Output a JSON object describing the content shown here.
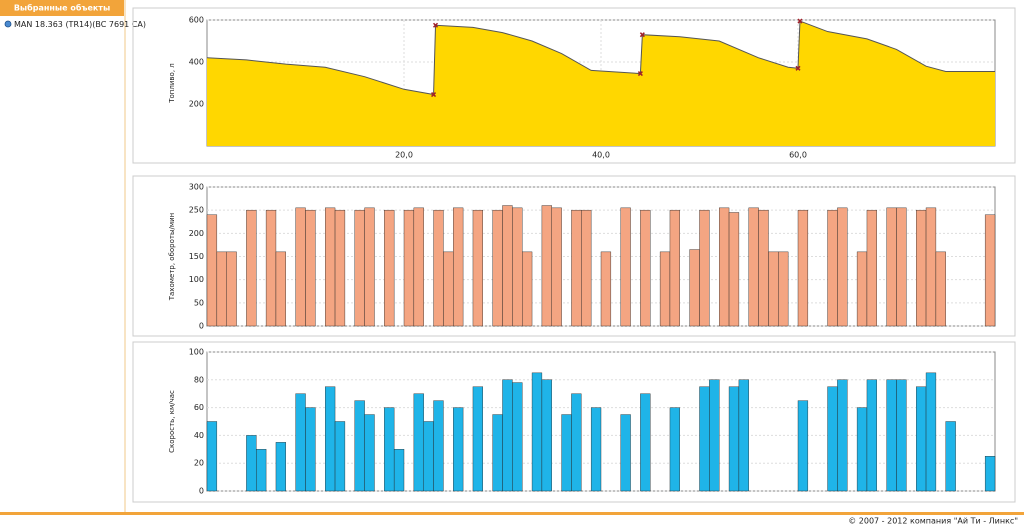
{
  "sidebar": {
    "title": "Выбранные объекты",
    "items": [
      "MAN 18.363 (TR14)(BC 7691 CA)"
    ]
  },
  "chart_data": [
    {
      "type": "area",
      "y_label": "Топливо, л",
      "color": "#ffd700",
      "line_color": "#555555",
      "x": [
        0,
        4,
        8,
        12,
        16,
        20,
        23,
        23.2,
        27,
        30,
        33,
        36,
        39,
        44,
        44.2,
        48,
        52,
        56,
        59,
        60,
        60.2,
        63,
        67,
        70,
        73,
        75,
        80
      ],
      "values": [
        420,
        410,
        390,
        375,
        330,
        270,
        245,
        575,
        565,
        540,
        500,
        440,
        360,
        345,
        530,
        520,
        500,
        420,
        375,
        370,
        595,
        545,
        510,
        460,
        380,
        355,
        355
      ],
      "markers": {
        "x": [
          23,
          23.2,
          44,
          44.2,
          60,
          60.2
        ],
        "values": [
          245,
          575,
          345,
          530,
          370,
          595
        ],
        "color": "#a0202a"
      },
      "xlim": [
        0,
        80
      ],
      "ylim": [
        0,
        600
      ],
      "xticks": [
        {
          "value": 20,
          "label": "20,0"
        },
        {
          "value": 40,
          "label": "40,0"
        },
        {
          "value": 60,
          "label": "60,0"
        }
      ],
      "yticks": [
        200,
        400,
        600
      ],
      "grid": true
    },
    {
      "type": "bar",
      "y_label": "Тахометр, обороты/мин",
      "color": "#f4a582",
      "x": [
        0,
        1,
        2,
        3,
        4,
        5,
        6,
        7,
        8,
        9,
        10,
        11,
        12,
        13,
        14,
        15,
        16,
        17,
        18,
        19,
        20,
        21,
        22,
        23,
        24,
        25,
        26,
        27,
        28,
        29,
        30,
        31,
        32,
        33,
        34,
        35,
        36,
        37,
        38,
        39,
        40,
        41,
        42,
        43,
        44,
        45,
        46,
        47,
        48,
        49,
        50,
        51,
        52,
        53,
        54,
        55,
        56,
        57,
        58,
        59,
        60,
        61,
        62,
        63,
        64,
        65,
        66,
        67,
        68,
        69,
        70,
        71,
        72,
        73,
        74,
        75,
        76,
        77,
        78,
        79
      ],
      "values": [
        240,
        160,
        160,
        0,
        250,
        0,
        250,
        160,
        0,
        255,
        250,
        0,
        255,
        250,
        0,
        250,
        255,
        0,
        250,
        0,
        250,
        255,
        0,
        250,
        160,
        255,
        0,
        250,
        0,
        250,
        260,
        255,
        160,
        0,
        260,
        255,
        0,
        250,
        250,
        0,
        160,
        0,
        255,
        0,
        250,
        0,
        160,
        250,
        0,
        165,
        250,
        0,
        255,
        245,
        0,
        255,
        250,
        160,
        160,
        0,
        250,
        0,
        0,
        250,
        255,
        0,
        160,
        250,
        0,
        255,
        255,
        0,
        250,
        255,
        160,
        0,
        0,
        0,
        0,
        240
      ],
      "xlim": [
        0,
        80
      ],
      "ylim": [
        0,
        300
      ],
      "yticks": [
        0,
        50,
        100,
        150,
        200,
        250,
        300
      ],
      "grid": true
    },
    {
      "type": "bar",
      "y_label": "Скорость, км/час",
      "color": "#1fb4e8",
      "x": [
        0,
        1,
        2,
        3,
        4,
        5,
        6,
        7,
        8,
        9,
        10,
        11,
        12,
        13,
        14,
        15,
        16,
        17,
        18,
        19,
        20,
        21,
        22,
        23,
        24,
        25,
        26,
        27,
        28,
        29,
        30,
        31,
        32,
        33,
        34,
        35,
        36,
        37,
        38,
        39,
        40,
        41,
        42,
        43,
        44,
        45,
        46,
        47,
        48,
        49,
        50,
        51,
        52,
        53,
        54,
        55,
        56,
        57,
        58,
        59,
        60,
        61,
        62,
        63,
        64,
        65,
        66,
        67,
        68,
        69,
        70,
        71,
        72,
        73,
        74,
        75,
        76,
        77,
        78,
        79
      ],
      "values": [
        50,
        0,
        0,
        0,
        40,
        30,
        0,
        35,
        0,
        70,
        60,
        0,
        75,
        50,
        0,
        65,
        55,
        0,
        60,
        30,
        0,
        70,
        50,
        65,
        0,
        60,
        0,
        75,
        0,
        55,
        80,
        78,
        0,
        85,
        80,
        0,
        55,
        70,
        0,
        60,
        0,
        0,
        55,
        0,
        70,
        0,
        0,
        60,
        0,
        0,
        75,
        80,
        0,
        75,
        80,
        0,
        0,
        0,
        0,
        0,
        65,
        0,
        0,
        75,
        80,
        0,
        60,
        80,
        0,
        80,
        80,
        0,
        75,
        85,
        0,
        50,
        0,
        0,
        0,
        25
      ],
      "xlim": [
        0,
        80
      ],
      "ylim": [
        0,
        100
      ],
      "yticks": [
        0,
        20,
        40,
        60,
        80,
        100
      ],
      "grid": true
    }
  ],
  "footer": "© 2007 - 2012 компания \"Ай Ти - Линкс\""
}
